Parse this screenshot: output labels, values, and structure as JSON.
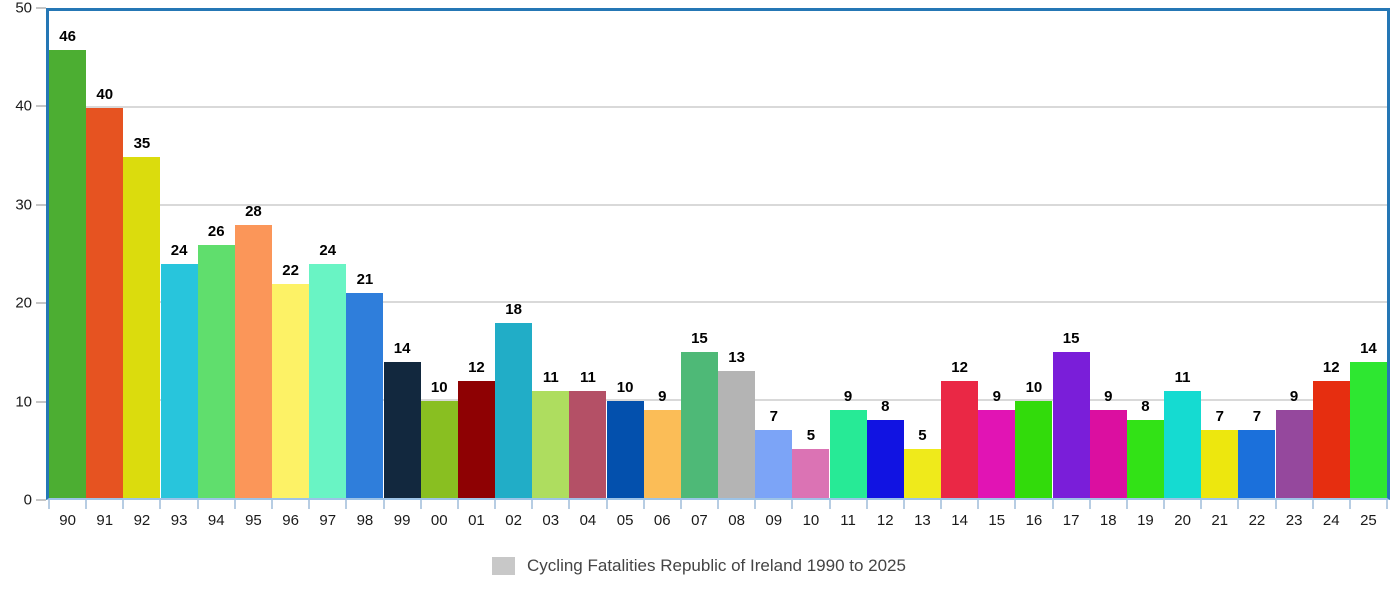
{
  "chart_data": {
    "type": "bar",
    "title": "",
    "xlabel": "",
    "ylabel": "",
    "ylim": [
      0,
      50
    ],
    "yticks": [
      0,
      10,
      20,
      30,
      40,
      50
    ],
    "grid": "horizontal",
    "legend_position": "bottom-center",
    "legend": {
      "label": "Cycling Fatalities Republic of Ireland 1990 to 2025",
      "swatch_color": "#C8C8C8"
    },
    "categories": [
      "90",
      "91",
      "92",
      "93",
      "94",
      "95",
      "96",
      "97",
      "98",
      "99",
      "00",
      "01",
      "02",
      "03",
      "04",
      "05",
      "06",
      "07",
      "08",
      "09",
      "10",
      "11",
      "12",
      "13",
      "14",
      "15",
      "16",
      "17",
      "18",
      "19",
      "20",
      "21",
      "22",
      "23",
      "24",
      "25"
    ],
    "values": [
      46,
      40,
      35,
      24,
      26,
      28,
      22,
      24,
      21,
      14,
      10,
      12,
      18,
      11,
      11,
      10,
      9,
      15,
      13,
      7,
      5,
      9,
      8,
      5,
      12,
      9,
      10,
      15,
      9,
      8,
      11,
      7,
      7,
      9,
      12,
      14
    ],
    "bar_colors": [
      "#4CAE32",
      "#E65321",
      "#DBDC0D",
      "#28C5DC",
      "#60DE6D",
      "#FB9659",
      "#FDF266",
      "#69F4C4",
      "#2F7EDB",
      "#12283E",
      "#89BF21",
      "#8E0103",
      "#21ADC7",
      "#AEDD5F",
      "#B45066",
      "#0350AD",
      "#FBBD57",
      "#4EB977",
      "#B4B4B4",
      "#7CA4F7",
      "#DB73B4",
      "#27EA96",
      "#1113E2",
      "#EFEA1B",
      "#EA2845",
      "#E114B4",
      "#32DB0B",
      "#7A1ED9",
      "#DB0FA0",
      "#32E216",
      "#15DBD1",
      "#EDE70E",
      "#1B70DB",
      "#95489D",
      "#E62E10",
      "#2EE731"
    ],
    "colors": {
      "plot_border": "#2577B5",
      "bottom_axis": "#9DC3E6",
      "gridline": "#D9D9D9",
      "x_tick": "#B7CDE3",
      "y_tick": "#C6C6C6",
      "value_label": "#000000",
      "axis_label": "#1A1A1A",
      "legend_text": "#444444"
    }
  }
}
